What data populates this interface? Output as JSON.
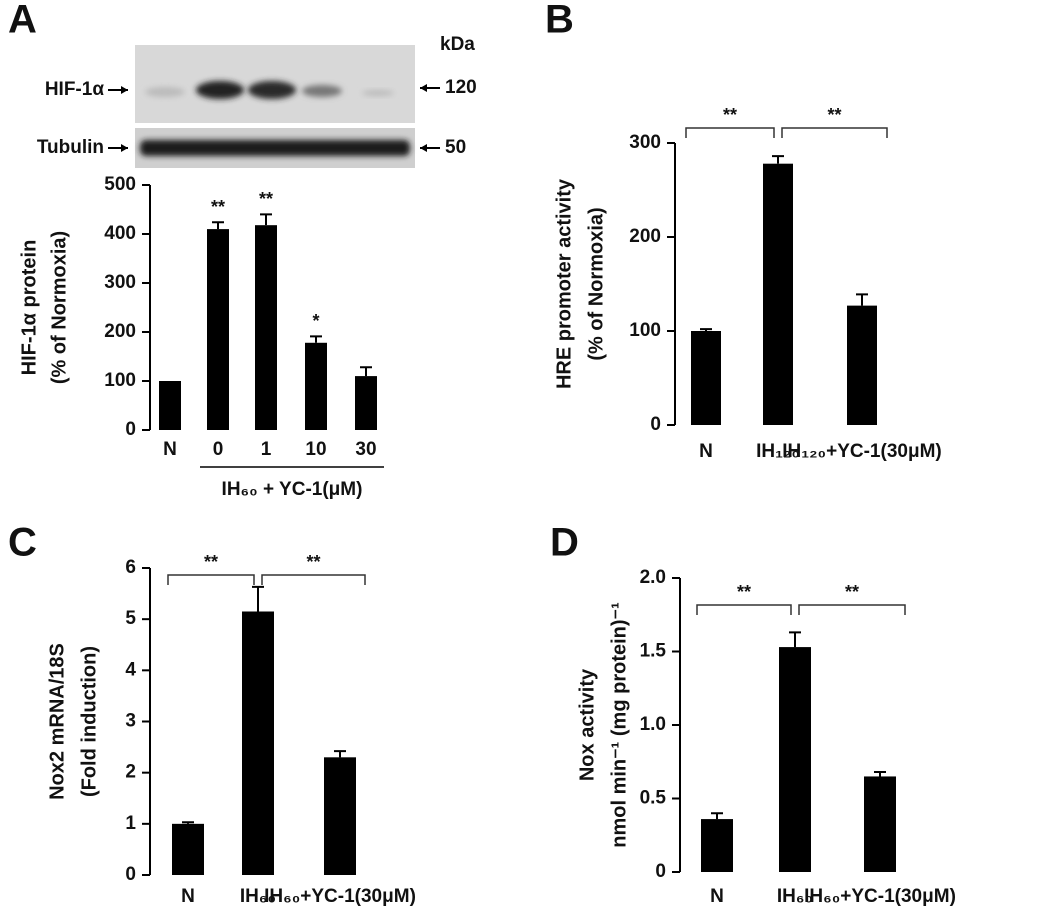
{
  "chart_data": [
    {
      "type": "bar",
      "panel": "A",
      "blot": {
        "bands": [
          "HIF-1α",
          "Tubulin"
        ],
        "unit": "kDa",
        "sizes": [
          120,
          50
        ]
      },
      "ylabel": [
        "HIF-1α protein",
        "(% of Normoxia)"
      ],
      "categories": [
        "N",
        "0",
        "1",
        "10",
        "30"
      ],
      "group_label": "IH₆₀ + YC-1(μM)",
      "values": [
        100,
        410,
        418,
        178,
        110
      ],
      "errors": [
        null,
        14,
        22,
        13,
        18
      ],
      "significance": [
        null,
        "**",
        "**",
        "*",
        null
      ],
      "color": "#000000",
      "ylim": [
        0,
        500
      ],
      "yticks": [
        0,
        100,
        200,
        300,
        400,
        500
      ]
    },
    {
      "type": "bar",
      "panel": "B",
      "ylabel": [
        "HRE promoter activity",
        "(% of Normoxia)"
      ],
      "categories": [
        "N",
        "IH₁₂₀",
        "IH₁₂₀+YC-1(30μM)"
      ],
      "values": [
        100,
        278,
        127
      ],
      "errors": [
        2,
        8,
        12
      ],
      "brackets": [
        "**",
        "**"
      ],
      "color": "#000000",
      "ylim": [
        0,
        300
      ],
      "yticks": [
        0,
        100,
        200,
        300
      ]
    },
    {
      "type": "bar",
      "panel": "C",
      "ylabel": [
        "Nox2 mRNA/18S",
        "(Fold induction)"
      ],
      "categories": [
        "N",
        "IH₆₀",
        "IH₆₀+YC-1(30μM)"
      ],
      "values": [
        1.0,
        5.15,
        2.3
      ],
      "errors": [
        0.03,
        0.48,
        0.12
      ],
      "brackets": [
        "**",
        "**"
      ],
      "color": "#000000",
      "ylim": [
        0,
        6
      ],
      "yticks": [
        0,
        1,
        2,
        3,
        4,
        5,
        6
      ]
    },
    {
      "type": "bar",
      "panel": "D",
      "ylabel": [
        "Nox activity",
        "nmol min⁻¹ (mg protein)⁻¹"
      ],
      "categories": [
        "N",
        "IH₆₀",
        "IH₆₀+YC-1(30μM)"
      ],
      "values": [
        0.36,
        1.53,
        0.65
      ],
      "errors": [
        0.04,
        0.1,
        0.03
      ],
      "brackets": [
        "**",
        "**"
      ],
      "color": "#000000",
      "ylim": [
        0,
        2
      ],
      "yticks": [
        0,
        0.5,
        {
          "value": 1,
          "label": "1.0"
        },
        1.5,
        {
          "value": 2,
          "label": "2.0"
        }
      ]
    }
  ]
}
